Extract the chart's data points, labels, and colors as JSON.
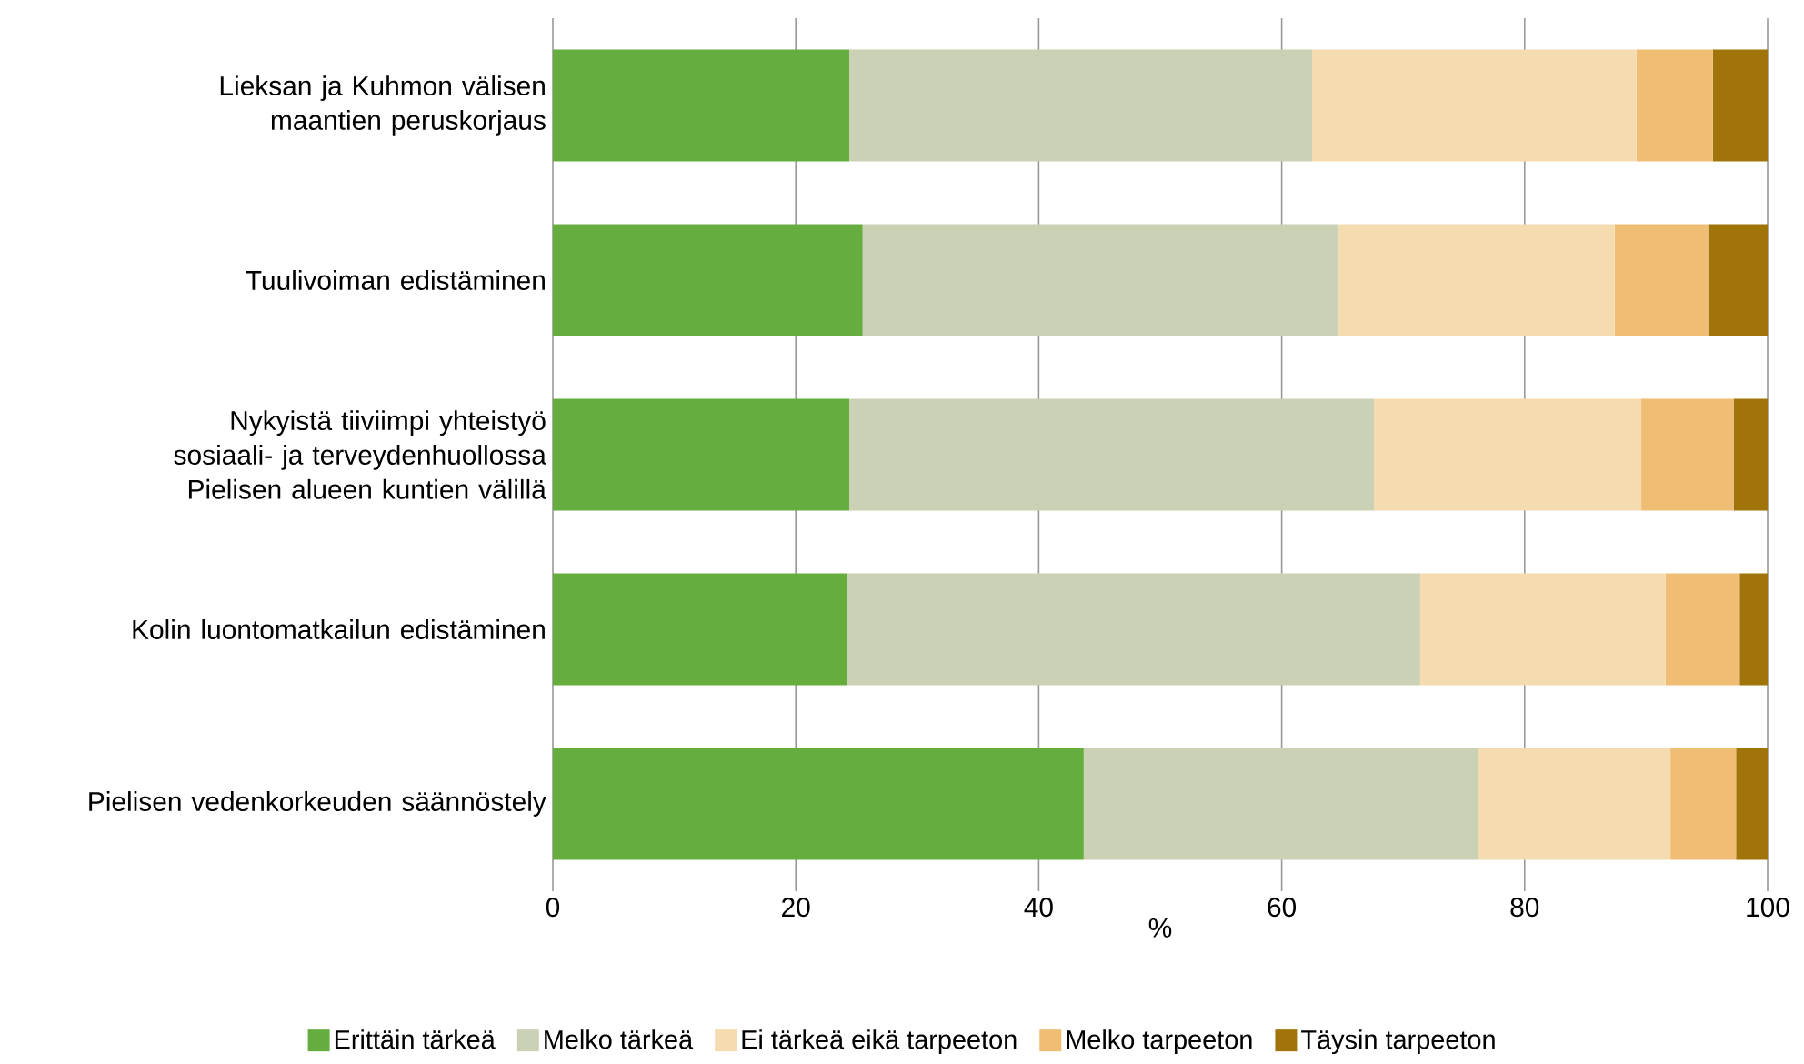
{
  "chart_data": {
    "type": "bar",
    "orientation": "horizontal",
    "stacked": true,
    "categories": [
      "Lieksan ja Kuhmon välisen maantien peruskorjaus",
      "Tuulivoiman edistäminen",
      "Nykyistä tiiviimpi yhteistyö sosiaali- ja terveydenhuollossa Pielisen alueen kuntien välillä",
      "Kolin luontomatkailun edistäminen",
      "Pielisen vedenkorkeuden säännöstely"
    ],
    "series": [
      {
        "name": "Erittäin tärkeä",
        "color": "#66ad3f",
        "values": [
          24.4,
          25.5,
          24.4,
          24.2,
          43.7
        ]
      },
      {
        "name": "Melko tärkeä",
        "color": "#cbd1b4",
        "values": [
          38.1,
          39.2,
          43.2,
          47.2,
          32.5
        ]
      },
      {
        "name": "Ei tärkeä eikä tarpeeton",
        "color": "#f4dbb0",
        "values": [
          26.7,
          22.7,
          22.0,
          20.2,
          15.8
        ]
      },
      {
        "name": "Melko tarpeeton",
        "color": "#efbe74",
        "values": [
          6.3,
          7.7,
          7.6,
          6.1,
          5.4
        ]
      },
      {
        "name": "Täysin tarpeeton",
        "color": "#a07409",
        "values": [
          4.5,
          4.9,
          2.8,
          2.3,
          2.6
        ]
      }
    ],
    "xlim": [
      0,
      100
    ],
    "xticks": [
      0,
      20,
      40,
      60,
      80,
      100
    ],
    "xlabel": "%",
    "grid": "x",
    "legend": "bottom"
  }
}
